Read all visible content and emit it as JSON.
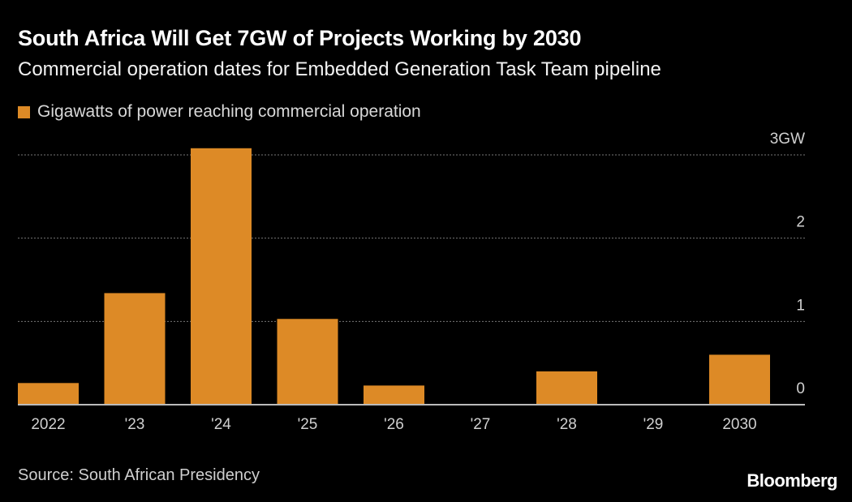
{
  "title": "South Africa Will Get 7GW of Projects Working by 2030",
  "subtitle": "Commercial operation dates for Embedded Generation Task Team pipeline",
  "source": "Source: South African Presidency",
  "logo": "Bloomberg",
  "colors": {
    "bar": "#dd8a26",
    "background": "#000000",
    "grid": "#777777"
  },
  "chart_data": {
    "type": "bar",
    "categories": [
      "2022",
      "'23",
      "'24",
      "'25",
      "'26",
      "'27",
      "'28",
      "'29",
      "2030"
    ],
    "series": [
      {
        "name": "Gigawatts of power reaching commercial operation",
        "values": [
          0.26,
          1.34,
          3.08,
          1.03,
          0.23,
          0,
          0.4,
          0,
          0.6
        ]
      }
    ],
    "yticks": [
      "0",
      "1",
      "2",
      "3GW"
    ],
    "ytick_values": [
      0,
      1,
      2,
      3
    ],
    "ylim": [
      0,
      3
    ],
    "grid": true,
    "legend": "top-left",
    "y_axis_position": "right"
  }
}
